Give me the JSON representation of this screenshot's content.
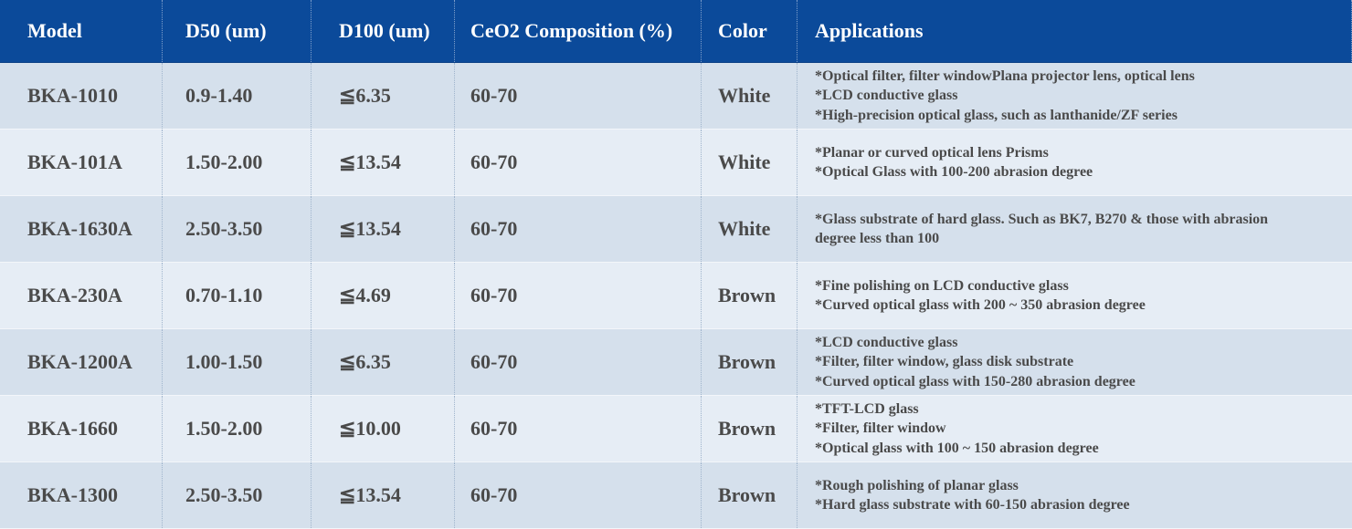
{
  "table": {
    "headers": {
      "model": "Model",
      "d50": "D50 (um)",
      "d100": "D100 (um)",
      "ceo2": "CeO2 Composition (%)",
      "color": "Color",
      "applications": "Applications"
    },
    "rows": [
      {
        "model": "BKA-1010",
        "d50": "0.9-1.40",
        "d100": "≦6.35",
        "ceo2": "60-70",
        "color": "White",
        "applications": [
          "*Optical filter, filter windowPlana projector lens, optical lens",
          "*LCD conductive glass",
          "*High-precision optical glass, such as lanthanide/ZF series"
        ]
      },
      {
        "model": "BKA-101A",
        "d50": "1.50-2.00",
        "d100": "≦13.54",
        "ceo2": "60-70",
        "color": "White",
        "applications": [
          "*Planar or curved optical lens Prisms",
          "*Optical Glass with 100-200 abrasion degree"
        ]
      },
      {
        "model": "BKA-1630A",
        "d50": "2.50-3.50",
        "d100": "≦13.54",
        "ceo2": "60-70",
        "color": "White",
        "applications": [
          "*Glass substrate of hard glass.  Such as BK7, B270 & those with abrasion",
          "degree less than 100"
        ]
      },
      {
        "model": "BKA-230A",
        "d50": "0.70-1.10",
        "d100": "≦4.69",
        "ceo2": "60-70",
        "color": "Brown",
        "applications": [
          "*Fine polishing on LCD conductive glass",
          "*Curved optical glass with 200 ~ 350 abrasion degree"
        ]
      },
      {
        "model": "BKA-1200A",
        "d50": "1.00-1.50",
        "d100": "≦6.35",
        "ceo2": "60-70",
        "color": "Brown",
        "applications": [
          "*LCD conductive glass",
          "*Filter, filter window, glass disk substrate",
          "*Curved optical glass with 150-280 abrasion degree"
        ]
      },
      {
        "model": "BKA-1660",
        "d50": "1.50-2.00",
        "d100": "≦10.00",
        "ceo2": "60-70",
        "color": "Brown",
        "applications": [
          "*TFT-LCD glass",
          "*Filter, filter window",
          "*Optical glass with 100 ~ 150 abrasion degree"
        ]
      },
      {
        "model": "BKA-1300",
        "d50": "2.50-3.50",
        "d100": "≦13.54",
        "ceo2": "60-70",
        "color": "Brown",
        "applications": [
          "*Rough polishing of planar glass",
          "*Hard glass substrate with 60-150 abrasion degree"
        ]
      }
    ]
  },
  "colors": {
    "header_bg": "#0b4a9a",
    "row_odd": "#d5e0ec",
    "row_even": "#e6edf5",
    "text": "#4a4a4a"
  }
}
